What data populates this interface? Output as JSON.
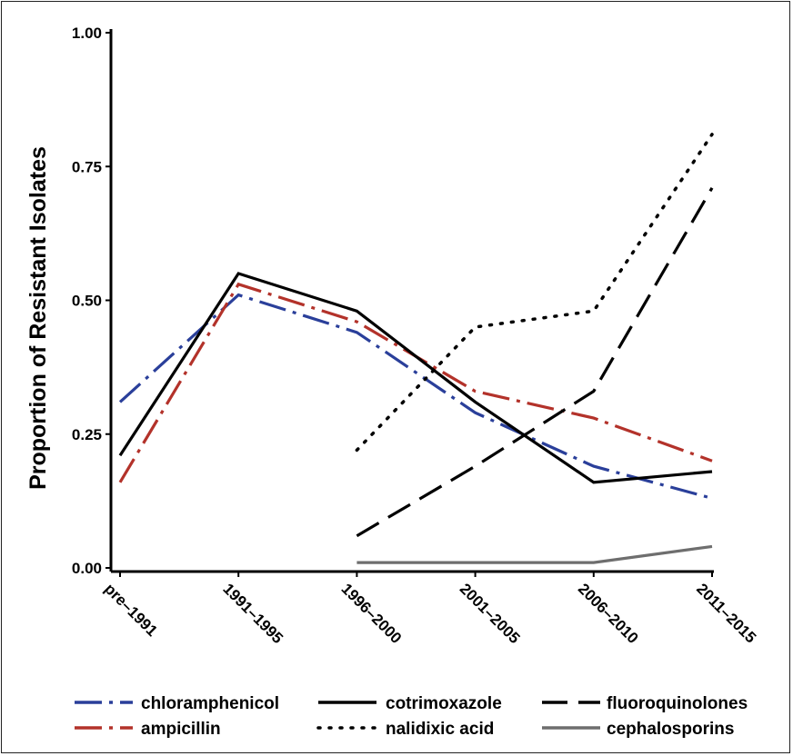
{
  "chart_data": {
    "type": "line",
    "title": "",
    "xlabel": "",
    "ylabel": "Proportion of  Resistant Isolates",
    "categories": [
      "pre–1991",
      "1991–1995",
      "1996–2000",
      "2001–2005",
      "2006–2010",
      "2011–2015"
    ],
    "ylim": [
      0,
      1
    ],
    "yticks": [
      0,
      0.25,
      0.5,
      0.75,
      1
    ],
    "ytick_labels": [
      "0.00",
      "0.25",
      "0.50",
      "0.75",
      "1.00"
    ],
    "grid": false,
    "legend_position": "bottom",
    "series": [
      {
        "name": "chloramphenicol",
        "color": "#2a3f9a",
        "style": "dashdot",
        "values": [
          0.31,
          0.51,
          0.44,
          0.29,
          0.19,
          0.13
        ]
      },
      {
        "name": "ampicillin",
        "color": "#b3322a",
        "style": "dashdot",
        "values": [
          0.16,
          0.53,
          0.46,
          0.33,
          0.28,
          0.2
        ]
      },
      {
        "name": "cotrimoxazole",
        "color": "#000000",
        "style": "solid",
        "values": [
          0.21,
          0.55,
          0.48,
          0.31,
          0.16,
          0.18
        ]
      },
      {
        "name": "nalidixic acid",
        "color": "#000000",
        "style": "dotted",
        "values": [
          null,
          null,
          0.22,
          0.45,
          0.48,
          0.81
        ]
      },
      {
        "name": "fluoroquinolones",
        "color": "#000000",
        "style": "longdash",
        "values": [
          null,
          null,
          0.06,
          0.19,
          0.33,
          0.71
        ]
      },
      {
        "name": "cephalosporins",
        "color": "#6e6e6e",
        "style": "solid",
        "values": [
          null,
          null,
          0.01,
          0.01,
          0.01,
          0.04
        ]
      }
    ]
  }
}
